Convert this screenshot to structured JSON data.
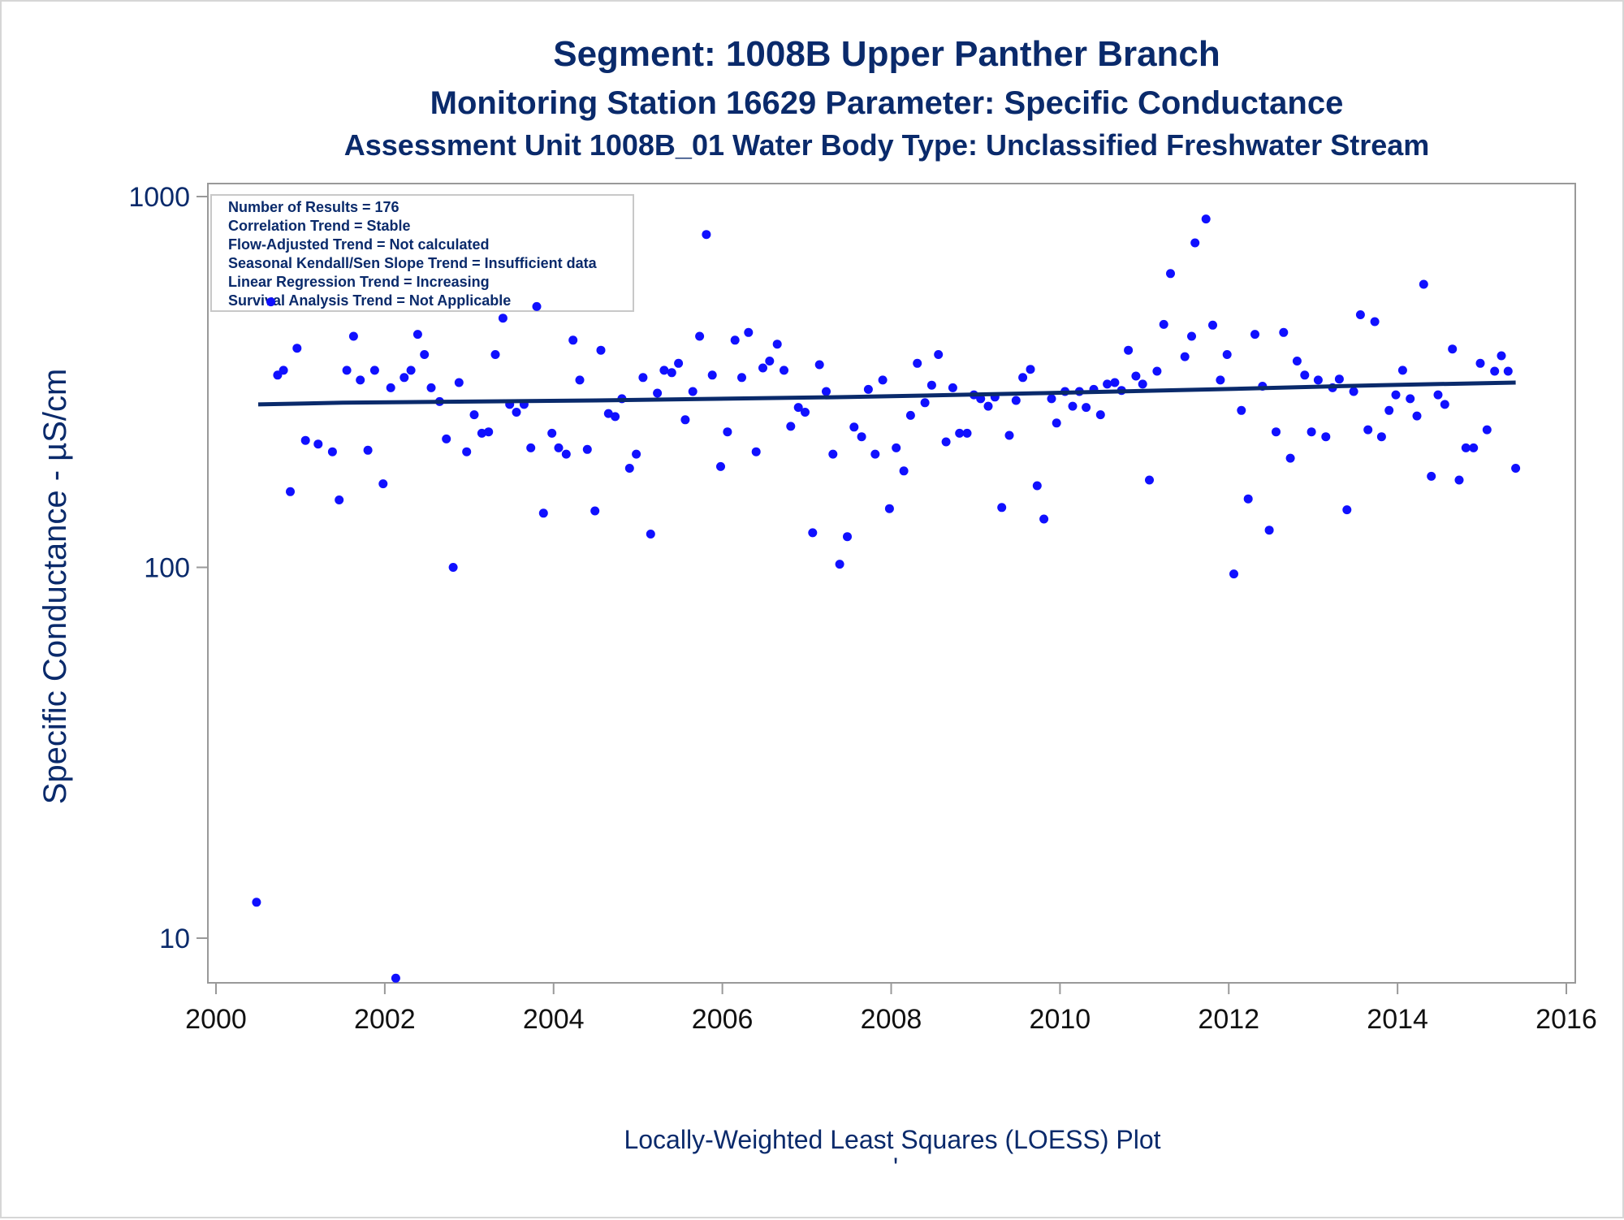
{
  "colors": {
    "text": "#0a2a6b",
    "points": "#1010ff",
    "trend": "#0a2a6b",
    "axis": "#999999"
  },
  "chart_data": {
    "type": "scatter",
    "title": "Segment: 1008B  Upper Panther Branch",
    "subtitle": "Monitoring Station 16629 Parameter: Specific Conductance",
    "subtitle2": "Assessment Unit 1008B_01   Water Body Type: Unclassified Freshwater Stream",
    "xlabel": "",
    "ylabel": "Specific Conductance -  µS/cm",
    "footnote": "Locally-Weighted Least Squares (LOESS) Plot",
    "footnote_mark": "'",
    "y_scale": "log",
    "xlim": [
      2000,
      2016
    ],
    "ylim": [
      8,
      1000
    ],
    "x_ticks": [
      "2000",
      "2002",
      "2004",
      "2006",
      "2008",
      "2010",
      "2012",
      "2014",
      "2016"
    ],
    "y_ticks": [
      "10",
      "100",
      "1000"
    ],
    "legend_placement": "top-left",
    "stats_box": [
      "Number of Results = 176",
      "Correlation Trend = Stable",
      "Flow-Adjusted Trend = Not calculated",
      "Seasonal Kendall/Sen Slope Trend = Insufficient data",
      "Linear Regression Trend = Increasing",
      "Survival Analysis Trend = Not Applicable"
    ],
    "trend_line": {
      "x": [
        2000.5,
        2001.5,
        2004.5,
        2007.5,
        2009.8,
        2011.8,
        2013.8,
        2015.4
      ],
      "y": [
        275,
        278,
        282,
        288,
        295,
        302,
        310,
        315
      ]
    },
    "points": [
      [
        2000.48,
        12.5
      ],
      [
        2000.65,
        520
      ],
      [
        2000.73,
        330
      ],
      [
        2000.8,
        340
      ],
      [
        2000.88,
        160
      ],
      [
        2000.96,
        390
      ],
      [
        2001.06,
        220
      ],
      [
        2001.21,
        215
      ],
      [
        2001.38,
        205
      ],
      [
        2001.46,
        152
      ],
      [
        2001.55,
        340
      ],
      [
        2001.63,
        420
      ],
      [
        2001.71,
        320
      ],
      [
        2001.8,
        207
      ],
      [
        2001.88,
        340
      ],
      [
        2001.98,
        168
      ],
      [
        2002.07,
        305
      ],
      [
        2002.13,
        7.8
      ],
      [
        2002.23,
        325
      ],
      [
        2002.31,
        340
      ],
      [
        2002.39,
        425
      ],
      [
        2002.47,
        375
      ],
      [
        2002.55,
        305
      ],
      [
        2002.65,
        280
      ],
      [
        2002.73,
        222
      ],
      [
        2002.81,
        100
      ],
      [
        2002.88,
        315
      ],
      [
        2002.97,
        205
      ],
      [
        2003.06,
        258
      ],
      [
        2003.15,
        230
      ],
      [
        2003.23,
        232
      ],
      [
        2003.31,
        375
      ],
      [
        2003.4,
        470
      ],
      [
        2003.48,
        275
      ],
      [
        2003.56,
        262
      ],
      [
        2003.65,
        275
      ],
      [
        2003.73,
        210
      ],
      [
        2003.8,
        505
      ],
      [
        2003.88,
        140
      ],
      [
        2003.98,
        230
      ],
      [
        2004.06,
        210
      ],
      [
        2004.15,
        202
      ],
      [
        2004.23,
        410
      ],
      [
        2004.31,
        320
      ],
      [
        2004.4,
        208
      ],
      [
        2004.49,
        142
      ],
      [
        2004.56,
        385
      ],
      [
        2004.65,
        260
      ],
      [
        2004.73,
        255
      ],
      [
        2004.81,
        285
      ],
      [
        2004.9,
        185
      ],
      [
        2004.98,
        202
      ],
      [
        2005.06,
        325
      ],
      [
        2005.15,
        123
      ],
      [
        2005.23,
        295
      ],
      [
        2005.31,
        340
      ],
      [
        2005.4,
        335
      ],
      [
        2005.48,
        355
      ],
      [
        2005.56,
        250
      ],
      [
        2005.65,
        298
      ],
      [
        2005.73,
        420
      ],
      [
        2005.81,
        790
      ],
      [
        2005.88,
        330
      ],
      [
        2005.98,
        187
      ],
      [
        2006.06,
        232
      ],
      [
        2006.15,
        410
      ],
      [
        2006.23,
        325
      ],
      [
        2006.31,
        430
      ],
      [
        2006.4,
        205
      ],
      [
        2006.48,
        345
      ],
      [
        2006.56,
        360
      ],
      [
        2006.65,
        400
      ],
      [
        2006.73,
        340
      ],
      [
        2006.81,
        240
      ],
      [
        2006.9,
        270
      ],
      [
        2006.98,
        262
      ],
      [
        2007.07,
        124
      ],
      [
        2007.15,
        352
      ],
      [
        2007.23,
        298
      ],
      [
        2007.31,
        202
      ],
      [
        2007.39,
        102
      ],
      [
        2007.48,
        121
      ],
      [
        2007.56,
        239
      ],
      [
        2007.65,
        225
      ],
      [
        2007.73,
        302
      ],
      [
        2007.81,
        202
      ],
      [
        2007.9,
        320
      ],
      [
        2007.98,
        144
      ],
      [
        2008.06,
        210
      ],
      [
        2008.15,
        182
      ],
      [
        2008.23,
        257
      ],
      [
        2008.31,
        355
      ],
      [
        2008.4,
        278
      ],
      [
        2008.48,
        310
      ],
      [
        2008.56,
        375
      ],
      [
        2008.65,
        218
      ],
      [
        2008.73,
        305
      ],
      [
        2008.81,
        230
      ],
      [
        2008.9,
        230
      ],
      [
        2008.98,
        292
      ],
      [
        2009.06,
        285
      ],
      [
        2009.15,
        272
      ],
      [
        2009.23,
        288
      ],
      [
        2009.31,
        145
      ],
      [
        2009.4,
        227
      ],
      [
        2009.48,
        282
      ],
      [
        2009.56,
        325
      ],
      [
        2009.65,
        342
      ],
      [
        2009.73,
        166
      ],
      [
        2009.81,
        135
      ],
      [
        2009.9,
        285
      ],
      [
        2009.96,
        245
      ],
      [
        2010.06,
        298
      ],
      [
        2010.15,
        272
      ],
      [
        2010.23,
        298
      ],
      [
        2010.31,
        270
      ],
      [
        2010.4,
        302
      ],
      [
        2010.48,
        258
      ],
      [
        2010.56,
        312
      ],
      [
        2010.65,
        315
      ],
      [
        2010.73,
        300
      ],
      [
        2010.81,
        385
      ],
      [
        2010.9,
        328
      ],
      [
        2010.98,
        312
      ],
      [
        2011.06,
        172
      ],
      [
        2011.15,
        338
      ],
      [
        2011.23,
        452
      ],
      [
        2011.31,
        620
      ],
      [
        2011.48,
        370
      ],
      [
        2011.56,
        420
      ],
      [
        2011.6,
        750
      ],
      [
        2011.73,
        870
      ],
      [
        2011.81,
        450
      ],
      [
        2011.9,
        320
      ],
      [
        2011.98,
        375
      ],
      [
        2012.06,
        96
      ],
      [
        2012.15,
        265
      ],
      [
        2012.23,
        153
      ],
      [
        2012.31,
        425
      ],
      [
        2012.4,
        308
      ],
      [
        2012.48,
        126
      ],
      [
        2012.56,
        232
      ],
      [
        2012.65,
        430
      ],
      [
        2012.73,
        197
      ],
      [
        2012.81,
        360
      ],
      [
        2012.9,
        330
      ],
      [
        2012.98,
        232
      ],
      [
        2013.06,
        320
      ],
      [
        2013.15,
        225
      ],
      [
        2013.23,
        305
      ],
      [
        2013.31,
        322
      ],
      [
        2013.4,
        143
      ],
      [
        2013.48,
        298
      ],
      [
        2013.56,
        480
      ],
      [
        2013.65,
        235
      ],
      [
        2013.73,
        460
      ],
      [
        2013.81,
        225
      ],
      [
        2013.9,
        265
      ],
      [
        2013.98,
        292
      ],
      [
        2014.06,
        340
      ],
      [
        2014.15,
        285
      ],
      [
        2014.23,
        256
      ],
      [
        2014.31,
        580
      ],
      [
        2014.4,
        176
      ],
      [
        2014.48,
        292
      ],
      [
        2014.56,
        275
      ],
      [
        2014.65,
        388
      ],
      [
        2014.73,
        172
      ],
      [
        2014.81,
        210
      ],
      [
        2014.9,
        210
      ],
      [
        2014.98,
        355
      ],
      [
        2015.06,
        235
      ],
      [
        2015.15,
        338
      ],
      [
        2015.23,
        372
      ],
      [
        2015.31,
        338
      ],
      [
        2015.4,
        185
      ]
    ]
  }
}
